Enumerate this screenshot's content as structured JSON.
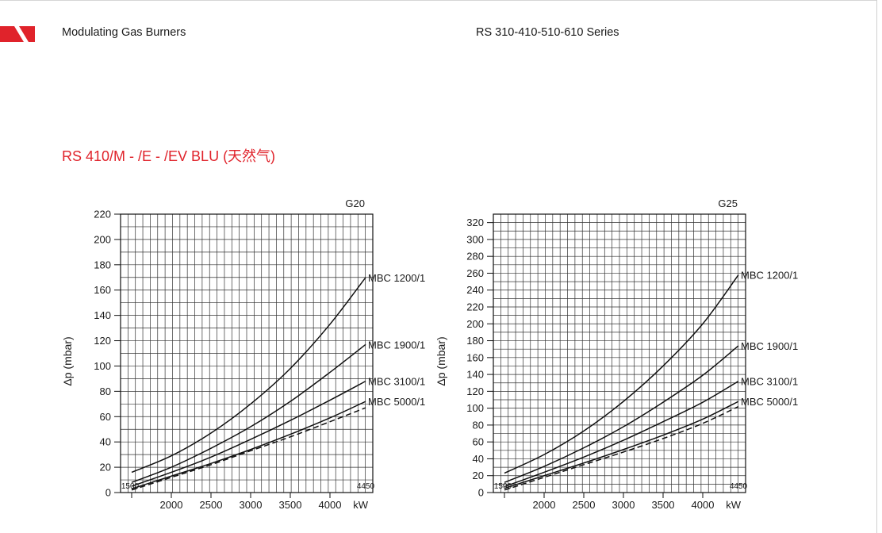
{
  "header": {
    "left_title": "Modulating Gas Burners",
    "right_title": "RS 310-410-510-610 Series"
  },
  "section_title": "RS 410/M - /E - /EV BLU (天然气)",
  "colors": {
    "accent": "#e0232b",
    "line": "#111111",
    "grid": "#222222"
  },
  "chart_data": [
    {
      "type": "line",
      "gas_label": "G20",
      "ylabel": "Δp (mbar)",
      "xlabel": "kW",
      "xlim": [
        1360,
        4540
      ],
      "ylim": [
        0,
        220
      ],
      "y_ticks": [
        0,
        20,
        40,
        60,
        80,
        100,
        120,
        140,
        160,
        180,
        200,
        220
      ],
      "x_ticks": [
        2000,
        2500,
        3000,
        3500,
        4000
      ],
      "range_min_label": "1500",
      "range_max_label": "4450",
      "range": [
        1500,
        4450
      ],
      "series": [
        {
          "name": "MBC 1200/1",
          "dashed": false,
          "points": [
            [
              1500,
              16
            ],
            [
              2000,
              29
            ],
            [
              2500,
              47
            ],
            [
              3000,
              70
            ],
            [
              3500,
              98
            ],
            [
              4000,
              133
            ],
            [
              4450,
              170
            ]
          ]
        },
        {
          "name": "MBC 1900/1",
          "dashed": false,
          "points": [
            [
              1500,
              8
            ],
            [
              2000,
              20
            ],
            [
              2500,
              35
            ],
            [
              3000,
              52
            ],
            [
              3500,
              72
            ],
            [
              4000,
              95
            ],
            [
              4450,
              117
            ]
          ]
        },
        {
          "name": "MBC 3100/1",
          "dashed": false,
          "points": [
            [
              1500,
              5
            ],
            [
              2000,
              16
            ],
            [
              2500,
              28
            ],
            [
              3000,
              42
            ],
            [
              3500,
              57
            ],
            [
              4000,
              73
            ],
            [
              4450,
              88
            ]
          ]
        },
        {
          "name": "MBC 5000/1",
          "dashed": false,
          "points": [
            [
              1500,
              3
            ],
            [
              2000,
              13
            ],
            [
              2500,
              23
            ],
            [
              3000,
              34
            ],
            [
              3500,
              46
            ],
            [
              4000,
              59
            ],
            [
              4450,
              72
            ]
          ]
        },
        {
          "name": "",
          "dashed": true,
          "points": [
            [
              1500,
              2
            ],
            [
              2000,
              12
            ],
            [
              2500,
              22
            ],
            [
              3000,
              33
            ],
            [
              3500,
              44
            ],
            [
              4000,
              56
            ],
            [
              4450,
              67
            ]
          ]
        }
      ]
    },
    {
      "type": "line",
      "gas_label": "G25",
      "ylabel": "Δp (mbar)",
      "xlabel": "kW",
      "xlim": [
        1360,
        4540
      ],
      "ylim": [
        0,
        330
      ],
      "y_ticks": [
        0,
        20,
        40,
        60,
        80,
        100,
        120,
        140,
        160,
        180,
        200,
        220,
        240,
        260,
        280,
        300,
        320
      ],
      "x_ticks": [
        2000,
        2500,
        3000,
        3500,
        4000
      ],
      "range_min_label": "1500",
      "range_max_label": "4450",
      "range": [
        1500,
        4450
      ],
      "series": [
        {
          "name": "MBC 1200/1",
          "dashed": false,
          "points": [
            [
              1500,
              23
            ],
            [
              2000,
              45
            ],
            [
              2500,
              73
            ],
            [
              3000,
              108
            ],
            [
              3500,
              150
            ],
            [
              4000,
              200
            ],
            [
              4450,
              258
            ]
          ]
        },
        {
          "name": "MBC 1900/1",
          "dashed": false,
          "points": [
            [
              1500,
              12
            ],
            [
              2000,
              31
            ],
            [
              2500,
              53
            ],
            [
              3000,
              78
            ],
            [
              3500,
              107
            ],
            [
              4000,
              139
            ],
            [
              4450,
              174
            ]
          ]
        },
        {
          "name": "MBC 3100/1",
          "dashed": false,
          "points": [
            [
              1500,
              7
            ],
            [
              2000,
              24
            ],
            [
              2500,
              42
            ],
            [
              3000,
              62
            ],
            [
              3500,
              84
            ],
            [
              4000,
              107
            ],
            [
              4450,
              132
            ]
          ]
        },
        {
          "name": "MBC 5000/1",
          "dashed": false,
          "points": [
            [
              1500,
              5
            ],
            [
              2000,
              20
            ],
            [
              2500,
              35
            ],
            [
              3000,
              51
            ],
            [
              3500,
              68
            ],
            [
              4000,
              87
            ],
            [
              4450,
              108
            ]
          ]
        },
        {
          "name": "",
          "dashed": true,
          "points": [
            [
              1500,
              3
            ],
            [
              2000,
              18
            ],
            [
              2500,
              33
            ],
            [
              3000,
              48
            ],
            [
              3500,
              64
            ],
            [
              4000,
              82
            ],
            [
              4450,
              102
            ]
          ]
        }
      ]
    }
  ]
}
